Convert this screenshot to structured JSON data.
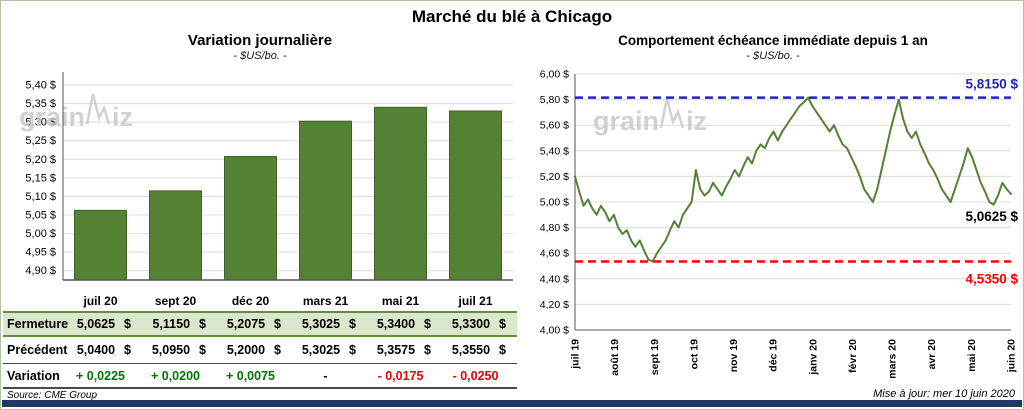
{
  "page": {
    "title": "Marché du blé à Chicago",
    "source": "Source: CME Group",
    "updated": "Mise à jour: mer 10 juin 2020",
    "watermark": "grainwiz",
    "bottom_bar_color": "#1f3864"
  },
  "chart_data": [
    {
      "type": "bar",
      "title": "Variation  journalière",
      "subtitle": "- $US/bo. -",
      "categories": [
        "juil 20",
        "sept 20",
        "déc 20",
        "mars 21",
        "mai 21",
        "juil 21"
      ],
      "values": [
        5.0625,
        5.115,
        5.2075,
        5.3025,
        5.34,
        5.33
      ],
      "ylim": [
        4.875,
        5.435
      ],
      "ytick_min": 4.9,
      "ytick_max": 5.4,
      "ytick_step": 0.05,
      "ytick_suffix": " $",
      "bar_color": "#548235",
      "bar_edge": "#3f6326",
      "grid": true
    },
    {
      "type": "line",
      "title": "Comportement  échéance immédiate depuis 1 an",
      "subtitle": "- $US/bo. -",
      "x_labels": [
        "juil 19",
        "août 19",
        "sept 19",
        "oct 19",
        "nov 19",
        "déc 19",
        "janv 20",
        "févr 20",
        "mars 20",
        "avr 20",
        "mai 20",
        "juin 20"
      ],
      "values": [
        5.2,
        5.08,
        4.97,
        5.02,
        4.95,
        4.9,
        4.97,
        4.92,
        4.85,
        4.9,
        4.8,
        4.75,
        4.78,
        4.7,
        4.65,
        4.7,
        4.62,
        4.55,
        4.535,
        4.6,
        4.65,
        4.7,
        4.78,
        4.85,
        4.8,
        4.9,
        4.95,
        5.0,
        5.25,
        5.1,
        5.05,
        5.08,
        5.15,
        5.1,
        5.05,
        5.12,
        5.18,
        5.25,
        5.2,
        5.28,
        5.35,
        5.3,
        5.4,
        5.45,
        5.42,
        5.5,
        5.55,
        5.48,
        5.55,
        5.6,
        5.65,
        5.7,
        5.75,
        5.78,
        5.815,
        5.75,
        5.7,
        5.65,
        5.6,
        5.55,
        5.6,
        5.52,
        5.45,
        5.42,
        5.35,
        5.28,
        5.2,
        5.1,
        5.05,
        5.0,
        5.1,
        5.25,
        5.4,
        5.55,
        5.68,
        5.8,
        5.65,
        5.55,
        5.5,
        5.55,
        5.45,
        5.38,
        5.3,
        5.25,
        5.18,
        5.1,
        5.05,
        5.0,
        5.1,
        5.2,
        5.3,
        5.42,
        5.35,
        5.25,
        5.15,
        5.08,
        5.0,
        4.98,
        5.05,
        5.15,
        5.1,
        5.0625
      ],
      "ylim": [
        4.0,
        6.0
      ],
      "ytick_step": 0.2,
      "ytick_suffix": " $",
      "line_color": "#548235",
      "high_line": {
        "value": 5.815,
        "label": "5,8150 $",
        "color": "#2121cc"
      },
      "low_line": {
        "value": 4.535,
        "label": "4,5350 $",
        "color": "#ff0000"
      },
      "last_point": {
        "value": 5.0625,
        "label": "5,0625 $",
        "color": "#000000"
      },
      "grid": true
    }
  ],
  "table": {
    "rows": [
      {
        "style": "fermeture",
        "label": "Fermeture",
        "values": [
          "5,0625",
          "5,1150",
          "5,2075",
          "5,3025",
          "5,3400",
          "5,3300"
        ],
        "unit": "$"
      },
      {
        "style": "precedent",
        "label": "Précédent",
        "values": [
          "5,0400",
          "5,0950",
          "5,2000",
          "5,3025",
          "5,3575",
          "5,3550"
        ],
        "unit": "$"
      },
      {
        "style": "variation",
        "label": "Variation",
        "values": [
          "+ 0,0225",
          "+ 0,0200",
          "+ 0,0075",
          "-",
          "- 0,0175",
          "- 0,0250"
        ],
        "value_colors": [
          "pos",
          "pos",
          "pos",
          "zero",
          "neg",
          "neg"
        ]
      }
    ]
  }
}
